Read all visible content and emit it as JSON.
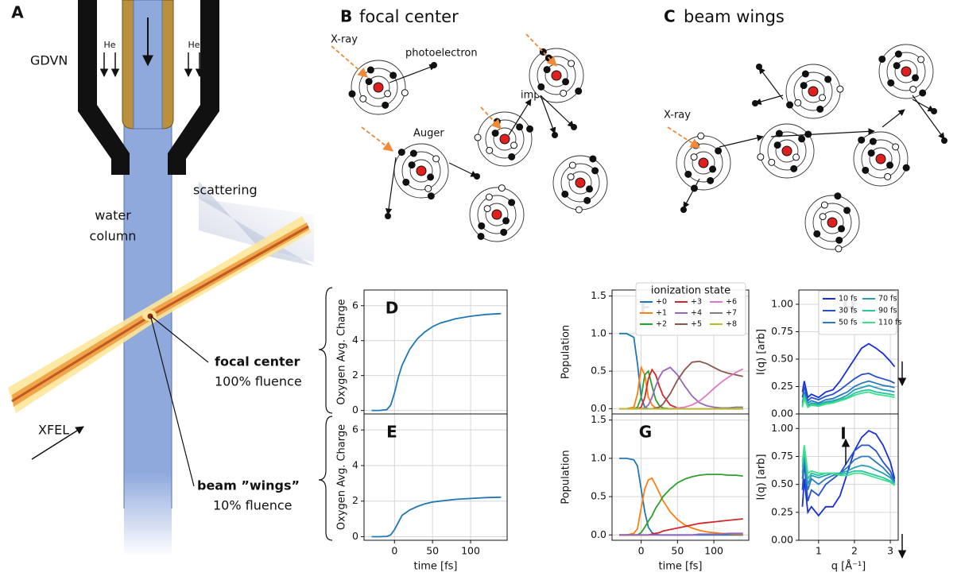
{
  "panel_a": {
    "label": "A",
    "nozzle": "GDVN",
    "gas": [
      "He",
      "He"
    ],
    "column": [
      "water",
      "column"
    ],
    "scattering": "scattering",
    "beam": "XFEL",
    "focal": {
      "title": "focal center",
      "fluence": "100% fluence"
    },
    "wings": {
      "title": "beam ”wings”",
      "fluence": "10% fluence"
    }
  },
  "panel_b": {
    "label": "B",
    "title": "focal center",
    "annotations": [
      "X-ray",
      "photoelectron",
      "impact",
      "Auger"
    ]
  },
  "panel_c": {
    "label": "C",
    "title": "beam wings",
    "annotations": [
      "X-ray"
    ]
  },
  "chart_data": [
    {
      "type": "line",
      "label": "D",
      "ylabel": "Oxygen Avg. Charge",
      "grid": true,
      "xticklabels": false,
      "x": [
        -30,
        -20,
        -10,
        -5,
        0,
        5,
        10,
        20,
        30,
        40,
        50,
        60,
        80,
        100,
        120,
        140
      ],
      "series": [
        {
          "color": "#1f77b4",
          "values": [
            0,
            0,
            0.05,
            0.3,
            1,
            1.9,
            2.6,
            3.5,
            4.1,
            4.5,
            4.8,
            5.0,
            5.25,
            5.4,
            5.5,
            5.55
          ]
        }
      ],
      "xlim": [
        -40,
        148
      ],
      "xticks": [
        0,
        50,
        100
      ],
      "ylim": [
        -0.2,
        6.9
      ],
      "yticks": [
        0,
        2,
        4,
        6
      ]
    },
    {
      "type": "line",
      "label": "E",
      "ylabel": "Oxygen Avg. Charge",
      "xlabel": "time [fs]",
      "grid": true,
      "x": [
        -30,
        -20,
        -10,
        -5,
        0,
        5,
        10,
        20,
        30,
        40,
        50,
        60,
        80,
        100,
        120,
        140
      ],
      "series": [
        {
          "color": "#1f77b4",
          "values": [
            0,
            0,
            0.02,
            0.1,
            0.4,
            0.8,
            1.2,
            1.5,
            1.7,
            1.85,
            1.95,
            2.0,
            2.1,
            2.15,
            2.2,
            2.22
          ]
        }
      ],
      "xlim": [
        -40,
        148
      ],
      "xticks": [
        0,
        50,
        100
      ],
      "ylim": [
        -0.2,
        6.9
      ],
      "yticks": [
        0,
        2,
        4,
        6
      ]
    },
    {
      "type": "line",
      "label": "F",
      "ylabel": "Population",
      "grid": true,
      "xticklabels": false,
      "legend": "upper right",
      "legend_title": "ionization state",
      "x": [
        -30,
        -20,
        -10,
        -5,
        0,
        5,
        10,
        15,
        20,
        25,
        30,
        40,
        50,
        60,
        70,
        80,
        90,
        100,
        110,
        120,
        130,
        140
      ],
      "series": [
        {
          "name": "+0",
          "color": "#1f77b4",
          "values": [
            1,
            1,
            0.95,
            0.6,
            0.15,
            0.02,
            0,
            0,
            0,
            0,
            0,
            0,
            0,
            0,
            0,
            0,
            0,
            0,
            0,
            0,
            0,
            0
          ]
        },
        {
          "name": "+1",
          "color": "#ff7f0e",
          "values": [
            0,
            0,
            0.02,
            0.2,
            0.55,
            0.45,
            0.15,
            0.05,
            0.01,
            0,
            0,
            0,
            0,
            0,
            0,
            0,
            0,
            0,
            0,
            0,
            0,
            0
          ]
        },
        {
          "name": "+2",
          "color": "#2ca02c",
          "values": [
            0,
            0,
            0,
            0.02,
            0.15,
            0.45,
            0.5,
            0.3,
            0.12,
            0.04,
            0.01,
            0,
            0,
            0,
            0,
            0,
            0,
            0,
            0,
            0,
            0,
            0
          ]
        },
        {
          "name": "+3",
          "color": "#d62728",
          "values": [
            0,
            0,
            0,
            0,
            0.02,
            0.15,
            0.4,
            0.52,
            0.45,
            0.3,
            0.18,
            0.05,
            0.01,
            0,
            0,
            0,
            0,
            0,
            0,
            0,
            0,
            0
          ]
        },
        {
          "name": "+4",
          "color": "#9467bd",
          "values": [
            0,
            0,
            0,
            0,
            0,
            0.01,
            0.05,
            0.15,
            0.3,
            0.42,
            0.5,
            0.55,
            0.45,
            0.3,
            0.17,
            0.08,
            0.04,
            0.02,
            0.01,
            0,
            0,
            0
          ]
        },
        {
          "name": "+5",
          "color": "#8c564b",
          "values": [
            0,
            0,
            0,
            0,
            0,
            0,
            0,
            0,
            0.01,
            0.02,
            0.06,
            0.2,
            0.38,
            0.52,
            0.62,
            0.63,
            0.6,
            0.55,
            0.5,
            0.47,
            0.45,
            0.43
          ]
        },
        {
          "name": "+6",
          "color": "#e377c2",
          "values": [
            0,
            0,
            0,
            0,
            0,
            0,
            0,
            0,
            0,
            0,
            0,
            0,
            0.01,
            0.02,
            0.05,
            0.1,
            0.18,
            0.27,
            0.35,
            0.42,
            0.48,
            0.53
          ]
        },
        {
          "name": "+7",
          "color": "#7f7f7f",
          "values": [
            0,
            0,
            0,
            0,
            0,
            0,
            0,
            0,
            0,
            0,
            0,
            0,
            0,
            0,
            0,
            0,
            0,
            0,
            0.01,
            0.01,
            0.02,
            0.02
          ]
        },
        {
          "name": "+8",
          "color": "#bcbd22",
          "values": [
            0,
            0,
            0,
            0,
            0,
            0,
            0,
            0,
            0,
            0,
            0,
            0,
            0,
            0,
            0,
            0,
            0,
            0,
            0,
            0,
            0,
            0
          ]
        }
      ],
      "xlim": [
        -40,
        148
      ],
      "xticks": [
        0,
        50,
        100
      ],
      "ylim": [
        -0.07,
        1.58
      ],
      "yticks": [
        {
          "value": 0,
          "label": "0.0"
        },
        {
          "value": 0.5,
          "label": "0.5"
        },
        {
          "value": 1,
          "label": "1.0"
        },
        {
          "value": 1.5,
          "label": "1.5"
        }
      ]
    },
    {
      "type": "line",
      "label": "G",
      "ylabel": "Population",
      "xlabel": "time [fs]",
      "grid": true,
      "x": [
        -30,
        -20,
        -10,
        -5,
        0,
        5,
        10,
        15,
        20,
        25,
        30,
        40,
        50,
        60,
        70,
        80,
        90,
        100,
        110,
        120,
        130,
        140
      ],
      "series": [
        {
          "color": "#1f77b4",
          "values": [
            1,
            1,
            0.98,
            0.9,
            0.6,
            0.3,
            0.1,
            0.03,
            0.01,
            0,
            0,
            0,
            0,
            0,
            0,
            0,
            0,
            0,
            0,
            0,
            0,
            0
          ]
        },
        {
          "color": "#ff7f0e",
          "values": [
            0,
            0,
            0.02,
            0.08,
            0.35,
            0.6,
            0.72,
            0.74,
            0.65,
            0.55,
            0.45,
            0.3,
            0.2,
            0.13,
            0.09,
            0.06,
            0.04,
            0.03,
            0.02,
            0.015,
            0.01,
            0.01
          ]
        },
        {
          "color": "#2ca02c",
          "values": [
            0,
            0,
            0,
            0,
            0.03,
            0.1,
            0.18,
            0.25,
            0.35,
            0.42,
            0.5,
            0.6,
            0.68,
            0.73,
            0.76,
            0.78,
            0.79,
            0.79,
            0.79,
            0.78,
            0.78,
            0.77
          ]
        },
        {
          "color": "#d62728",
          "values": [
            0,
            0,
            0,
            0,
            0,
            0,
            0,
            0.01,
            0.02,
            0.03,
            0.05,
            0.07,
            0.09,
            0.11,
            0.13,
            0.15,
            0.16,
            0.17,
            0.18,
            0.19,
            0.2,
            0.21
          ]
        },
        {
          "color": "#9467bd",
          "values": [
            0,
            0,
            0,
            0,
            0,
            0,
            0,
            0,
            0,
            0,
            0,
            0,
            0,
            0,
            0,
            0.01,
            0.01,
            0.01,
            0.01,
            0.02,
            0.02,
            0.02
          ]
        }
      ],
      "xlim": [
        -40,
        148
      ],
      "xticks": [
        0,
        50,
        100
      ],
      "ylim": [
        -0.07,
        1.58
      ],
      "yticks": [
        {
          "value": 0,
          "label": "0.0"
        },
        {
          "value": 0.5,
          "label": "0.5"
        },
        {
          "value": 1,
          "label": "1.0"
        },
        {
          "value": 1.5,
          "label": "1.5"
        }
      ]
    },
    {
      "type": "line",
      "label": "H",
      "ylabel": "I(q) [arb]",
      "grid": true,
      "xticklabels": false,
      "legend": "upper right",
      "x": [
        0.55,
        0.6,
        0.7,
        0.8,
        1.0,
        1.2,
        1.4,
        1.6,
        1.8,
        2.0,
        2.2,
        2.4,
        2.6,
        2.8,
        3.0,
        3.12
      ],
      "series": [
        {
          "name": "10 fs",
          "color": "#1a2fd6",
          "values": [
            0.2,
            0.3,
            0.15,
            0.18,
            0.15,
            0.2,
            0.22,
            0.3,
            0.4,
            0.5,
            0.6,
            0.64,
            0.6,
            0.55,
            0.48,
            0.43
          ]
        },
        {
          "name": "30 fs",
          "color": "#2553c8",
          "values": [
            0.15,
            0.25,
            0.12,
            0.15,
            0.13,
            0.16,
            0.18,
            0.22,
            0.27,
            0.32,
            0.36,
            0.37,
            0.34,
            0.32,
            0.3,
            0.28
          ]
        },
        {
          "name": "50 fs",
          "color": "#2a7ac0",
          "values": [
            0.1,
            0.2,
            0.1,
            0.12,
            0.1,
            0.13,
            0.14,
            0.17,
            0.2,
            0.25,
            0.28,
            0.3,
            0.28,
            0.26,
            0.25,
            0.24
          ]
        },
        {
          "name": "70 fs",
          "color": "#2a9eb8",
          "values": [
            0.08,
            0.18,
            0.08,
            0.1,
            0.09,
            0.11,
            0.12,
            0.14,
            0.17,
            0.22,
            0.24,
            0.26,
            0.24,
            0.22,
            0.21,
            0.2
          ]
        },
        {
          "name": "90 fs",
          "color": "#2cc4a0",
          "values": [
            0.07,
            0.16,
            0.07,
            0.09,
            0.08,
            0.1,
            0.11,
            0.13,
            0.15,
            0.19,
            0.21,
            0.22,
            0.2,
            0.19,
            0.18,
            0.17
          ]
        },
        {
          "name": "110 fs",
          "color": "#3ee08a",
          "values": [
            0.06,
            0.14,
            0.06,
            0.08,
            0.07,
            0.09,
            0.1,
            0.12,
            0.14,
            0.17,
            0.19,
            0.2,
            0.18,
            0.17,
            0.16,
            0.15
          ]
        }
      ],
      "xlim": [
        0.45,
        3.22
      ],
      "xticks": [
        1,
        2,
        3
      ],
      "ylim": [
        0,
        1.13
      ],
      "yticks": [
        {
          "value": 0,
          "label": "0.00"
        },
        {
          "value": 0.25,
          "label": "0.25"
        },
        {
          "value": 0.5,
          "label": "0.50"
        },
        {
          "value": 0.75,
          "label": "0.75"
        },
        {
          "value": 1,
          "label": "1.00"
        }
      ]
    },
    {
      "type": "line",
      "label": "I",
      "ylabel": "I(q) [arb]",
      "xlabel": "q [Å⁻¹]",
      "grid": true,
      "x": [
        0.55,
        0.6,
        0.7,
        0.8,
        1.0,
        1.2,
        1.4,
        1.6,
        1.8,
        2.0,
        2.2,
        2.4,
        2.6,
        2.8,
        3.0,
        3.12
      ],
      "series": [
        {
          "color": "#1a2fd6",
          "values": [
            0.3,
            0.55,
            0.25,
            0.3,
            0.22,
            0.3,
            0.3,
            0.4,
            0.6,
            0.8,
            0.92,
            0.98,
            0.95,
            0.85,
            0.7,
            0.55
          ]
        },
        {
          "color": "#2553c8",
          "values": [
            0.45,
            0.7,
            0.35,
            0.45,
            0.4,
            0.5,
            0.55,
            0.6,
            0.7,
            0.8,
            0.85,
            0.85,
            0.8,
            0.7,
            0.62,
            0.53
          ]
        },
        {
          "color": "#2a7ac0",
          "values": [
            0.55,
            0.75,
            0.45,
            0.55,
            0.5,
            0.55,
            0.58,
            0.6,
            0.65,
            0.72,
            0.75,
            0.75,
            0.7,
            0.65,
            0.58,
            0.52
          ]
        },
        {
          "color": "#2a9eb8",
          "values": [
            0.6,
            0.8,
            0.5,
            0.58,
            0.56,
            0.58,
            0.6,
            0.6,
            0.62,
            0.65,
            0.67,
            0.66,
            0.63,
            0.6,
            0.56,
            0.51
          ]
        },
        {
          "color": "#2cc4a0",
          "values": [
            0.65,
            0.82,
            0.55,
            0.6,
            0.58,
            0.6,
            0.6,
            0.59,
            0.6,
            0.62,
            0.62,
            0.6,
            0.58,
            0.56,
            0.53,
            0.5
          ]
        },
        {
          "color": "#3ee08a",
          "values": [
            0.7,
            0.85,
            0.6,
            0.62,
            0.6,
            0.6,
            0.6,
            0.58,
            0.58,
            0.6,
            0.6,
            0.58,
            0.56,
            0.54,
            0.52,
            0.49
          ]
        }
      ],
      "xlim": [
        0.45,
        3.22
      ],
      "xticks": [
        1,
        2,
        3
      ],
      "ylim": [
        0,
        1.13
      ],
      "yticks": [
        {
          "value": 0,
          "label": "0.00"
        },
        {
          "value": 0.25,
          "label": "0.25"
        },
        {
          "value": 0.5,
          "label": "0.50"
        },
        {
          "value": 0.75,
          "label": "0.75"
        },
        {
          "value": 1,
          "label": "1.00"
        }
      ]
    }
  ]
}
